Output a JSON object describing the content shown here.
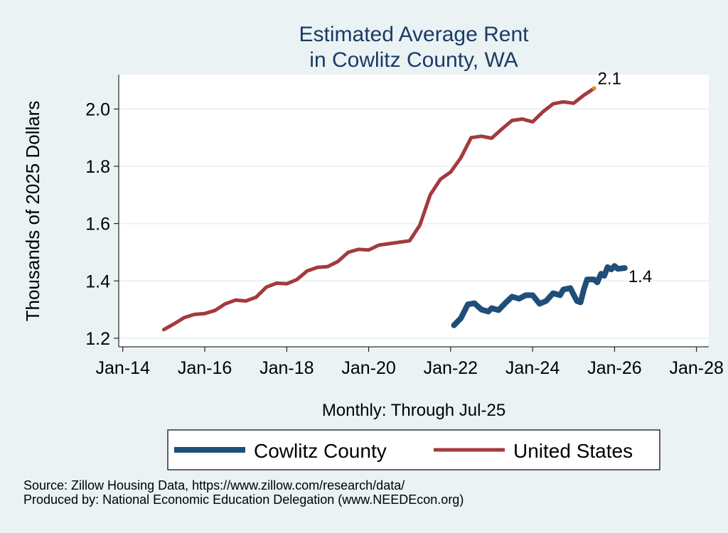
{
  "chart_data": {
    "type": "line",
    "title": [
      "Estimated Average Rent",
      "in Cowlitz County, WA"
    ],
    "xlabel": "Monthly: Through Jul-25",
    "ylabel": "Thousands of 2025 Dollars",
    "x_ticks": [
      "Jan-14",
      "Jan-16",
      "Jan-18",
      "Jan-20",
      "Jan-22",
      "Jan-24",
      "Jan-26",
      "Jan-28"
    ],
    "x_tick_years": [
      2014,
      2016,
      2018,
      2020,
      2022,
      2024,
      2026,
      2028
    ],
    "xlim": [
      2013.9,
      2028.3
    ],
    "y_ticks": [
      "1.2",
      "1.4",
      "1.6",
      "1.8",
      "2.0"
    ],
    "y_tick_values": [
      1.2,
      1.4,
      1.6,
      1.8,
      2.0
    ],
    "ylim": [
      1.17,
      2.12
    ],
    "grid": "horizontal",
    "legend_position": "bottom",
    "series": [
      {
        "name": "Cowlitz County",
        "color": "#1f4e79",
        "end_label": "1.4",
        "points": [
          [
            2022.08,
            1.245
          ],
          [
            2022.25,
            1.27
          ],
          [
            2022.42,
            1.318
          ],
          [
            2022.58,
            1.322
          ],
          [
            2022.75,
            1.3
          ],
          [
            2022.92,
            1.293
          ],
          [
            2023.0,
            1.305
          ],
          [
            2023.17,
            1.298
          ],
          [
            2023.33,
            1.322
          ],
          [
            2023.5,
            1.345
          ],
          [
            2023.67,
            1.338
          ],
          [
            2023.83,
            1.35
          ],
          [
            2024.0,
            1.35
          ],
          [
            2024.17,
            1.32
          ],
          [
            2024.33,
            1.33
          ],
          [
            2024.5,
            1.357
          ],
          [
            2024.67,
            1.35
          ],
          [
            2024.75,
            1.37
          ],
          [
            2024.92,
            1.375
          ],
          [
            2025.08,
            1.33
          ],
          [
            2025.17,
            1.325
          ],
          [
            2025.25,
            1.37
          ],
          [
            2025.33,
            1.405
          ],
          [
            2025.5,
            1.405
          ],
          [
            2025.58,
            1.395
          ],
          [
            2025.67,
            1.425
          ],
          [
            2025.75,
            1.418
          ],
          [
            2025.83,
            1.448
          ],
          [
            2025.92,
            1.44
          ],
          [
            2026.0,
            1.452
          ],
          [
            2026.08,
            1.442
          ],
          [
            2026.25,
            1.445
          ]
        ]
      },
      {
        "name": "United States",
        "color": "#a33a3e",
        "end_label": "2.1",
        "end_marker_color": "#e08a1e",
        "points": [
          [
            2015.0,
            1.23
          ],
          [
            2015.25,
            1.25
          ],
          [
            2015.5,
            1.272
          ],
          [
            2015.75,
            1.283
          ],
          [
            2016.0,
            1.286
          ],
          [
            2016.25,
            1.297
          ],
          [
            2016.5,
            1.32
          ],
          [
            2016.75,
            1.333
          ],
          [
            2017.0,
            1.33
          ],
          [
            2017.25,
            1.343
          ],
          [
            2017.5,
            1.378
          ],
          [
            2017.75,
            1.392
          ],
          [
            2018.0,
            1.39
          ],
          [
            2018.25,
            1.405
          ],
          [
            2018.5,
            1.435
          ],
          [
            2018.75,
            1.447
          ],
          [
            2019.0,
            1.45
          ],
          [
            2019.25,
            1.468
          ],
          [
            2019.5,
            1.5
          ],
          [
            2019.75,
            1.51
          ],
          [
            2020.0,
            1.508
          ],
          [
            2020.25,
            1.525
          ],
          [
            2020.5,
            1.53
          ],
          [
            2020.75,
            1.535
          ],
          [
            2021.0,
            1.54
          ],
          [
            2021.25,
            1.595
          ],
          [
            2021.5,
            1.7
          ],
          [
            2021.75,
            1.755
          ],
          [
            2022.0,
            1.78
          ],
          [
            2022.25,
            1.83
          ],
          [
            2022.5,
            1.9
          ],
          [
            2022.75,
            1.905
          ],
          [
            2023.0,
            1.898
          ],
          [
            2023.25,
            1.93
          ],
          [
            2023.5,
            1.96
          ],
          [
            2023.75,
            1.965
          ],
          [
            2024.0,
            1.955
          ],
          [
            2024.25,
            1.99
          ],
          [
            2024.5,
            2.018
          ],
          [
            2024.75,
            2.025
          ],
          [
            2025.0,
            2.02
          ],
          [
            2025.25,
            2.048
          ],
          [
            2025.5,
            2.072
          ]
        ]
      }
    ]
  },
  "notes": {
    "source": "Source: Zillow Housing Data, https://www.zillow.com/research/data/",
    "producer": "Produced by: National Economic Education Delegation (www.NEEDEcon.org)"
  }
}
